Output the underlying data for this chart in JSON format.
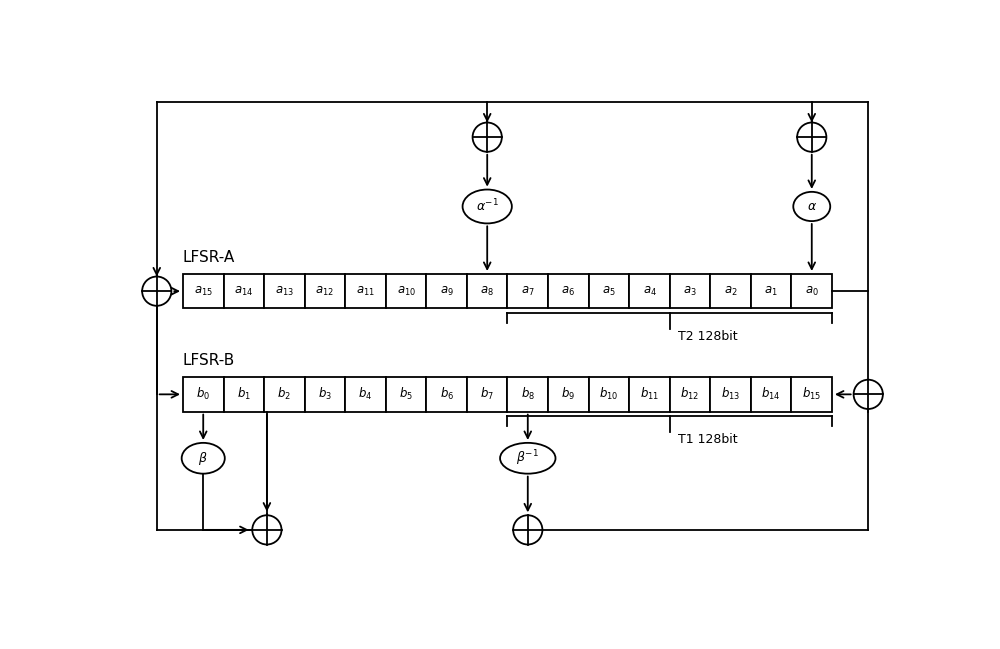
{
  "fig_width": 10.0,
  "fig_height": 6.49,
  "bg_color": "#ffffff",
  "line_color": "#000000",
  "lfsr_a_labels": [
    "a_{15}",
    "a_{14}",
    "a_{13}",
    "a_{12}",
    "a_{11}",
    "a_{10}",
    "a_9",
    "a_8",
    "a_7",
    "a_6",
    "a_5",
    "a_4",
    "a_3",
    "a_2",
    "a_1",
    "a_0"
  ],
  "lfsr_b_labels": [
    "b_0",
    "b_1",
    "b_2",
    "b_3",
    "b_4",
    "b_5",
    "b_6",
    "b_7",
    "b_8",
    "b_9",
    "b_{10}",
    "b_{11}",
    "b_{12}",
    "b_{13}",
    "b_{14}",
    "b_{15}"
  ],
  "lfsr_a_label": "LFSR-A",
  "lfsr_b_label": "LFSR-B",
  "t2_label": "T2 128bit",
  "t1_label": "T1 128bit",
  "cell_fontsize": 8.5,
  "label_fontsize": 11,
  "annot_fontsize": 9,
  "func_fontsize": 9,
  "lw": 1.3,
  "arrow_mutation": 12
}
